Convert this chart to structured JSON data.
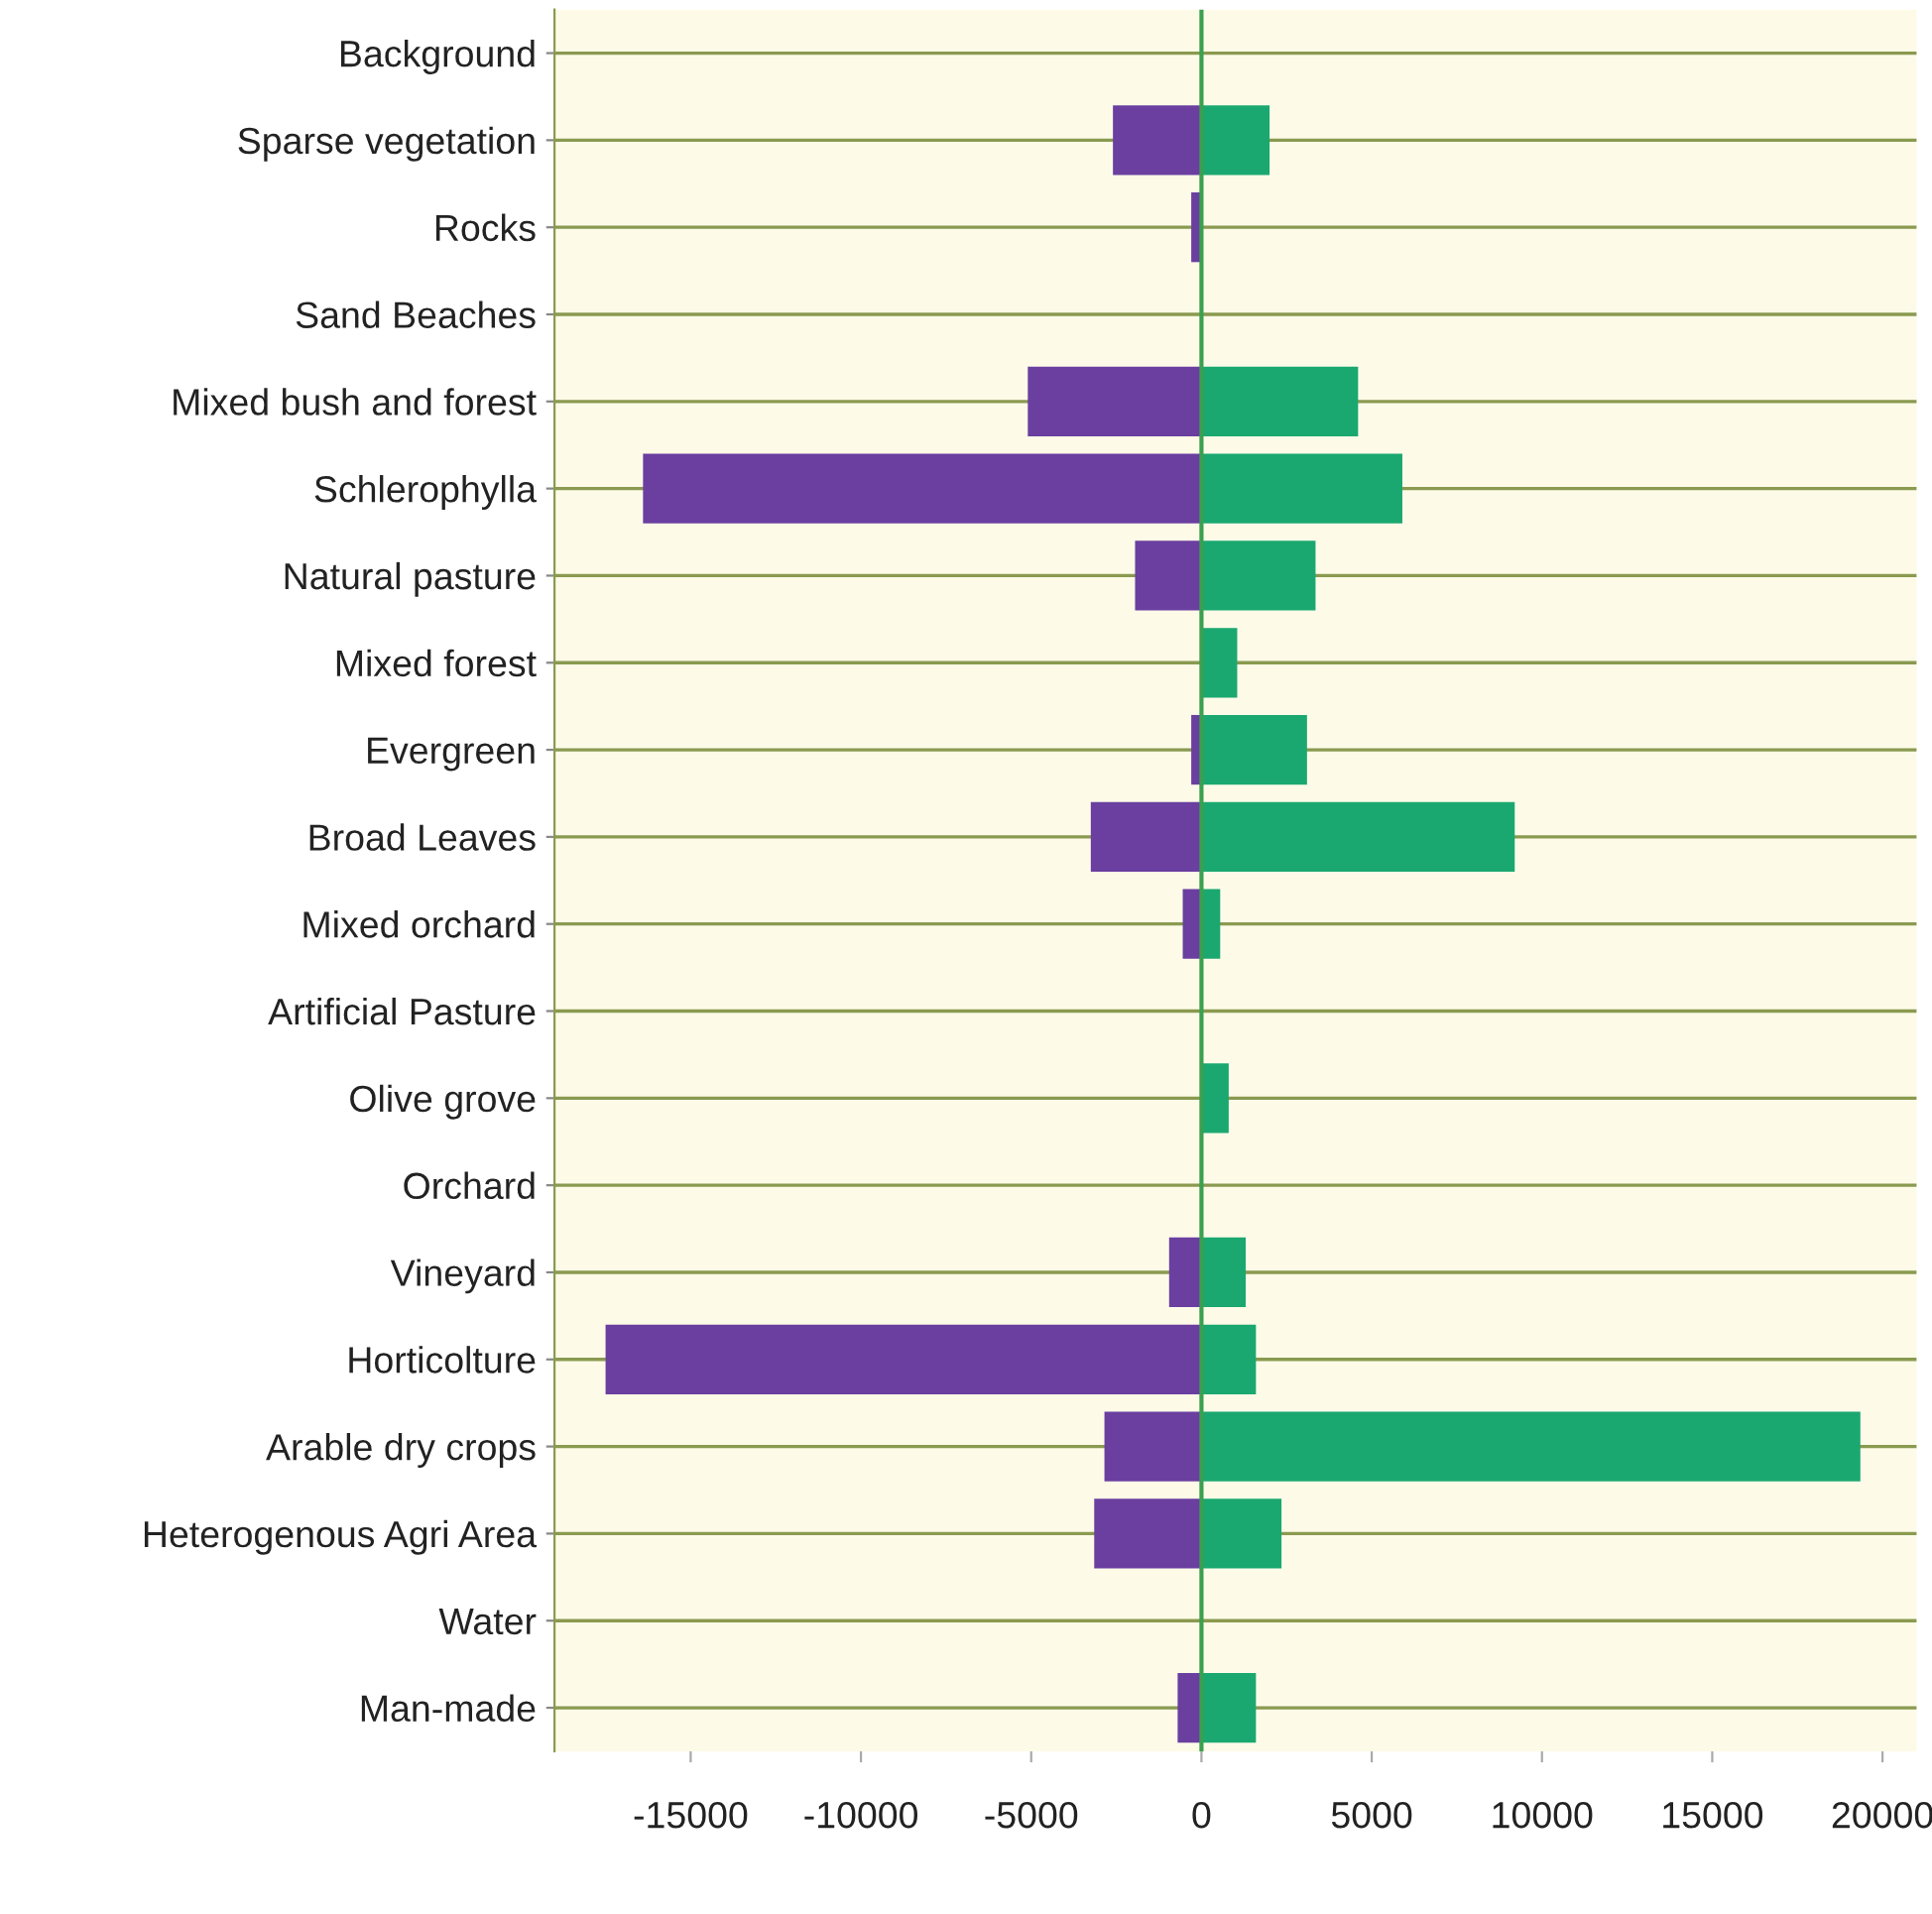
{
  "chart_data": {
    "type": "bar",
    "orientation": "horizontal",
    "stacked": true,
    "categories": [
      "Background",
      "Sparse vegetation",
      "Rocks",
      "Sand Beaches",
      "Mixed bush and forest",
      "Schlerophylla",
      "Natural pasture",
      "Mixed forest",
      "Evergreen",
      "Broad Leaves",
      "Mixed orchard",
      "Artificial Pasture",
      "Olive grove",
      "Orchard",
      "Vineyard",
      "Horticolture",
      "Arable dry crops",
      "Heterogenous Agri Area",
      "Water",
      "Man-made"
    ],
    "series": [
      {
        "color": "#6a3fa0",
        "values": [
          0,
          -2600,
          -300,
          0,
          -5100,
          -16400,
          -1950,
          0,
          -300,
          -3250,
          -550,
          0,
          null,
          null,
          -950,
          -17500,
          -2850,
          -3150,
          0,
          -700
        ]
      },
      {
        "color": "#1aa870",
        "values": [
          0,
          2000,
          0,
          0,
          4600,
          5900,
          3350,
          1050,
          3100,
          9200,
          550,
          0,
          800,
          0,
          1300,
          1600,
          19350,
          2350,
          0,
          1600
        ]
      }
    ],
    "xlim": [
      -19000,
      21000
    ],
    "xticks": [
      -15000,
      -10000,
      -5000,
      0,
      5000,
      10000,
      15000,
      20000
    ],
    "grid": "y",
    "legend": false,
    "ref_lines": [
      {
        "axis": "x",
        "value": 0,
        "color": "#3aa050"
      }
    ]
  }
}
